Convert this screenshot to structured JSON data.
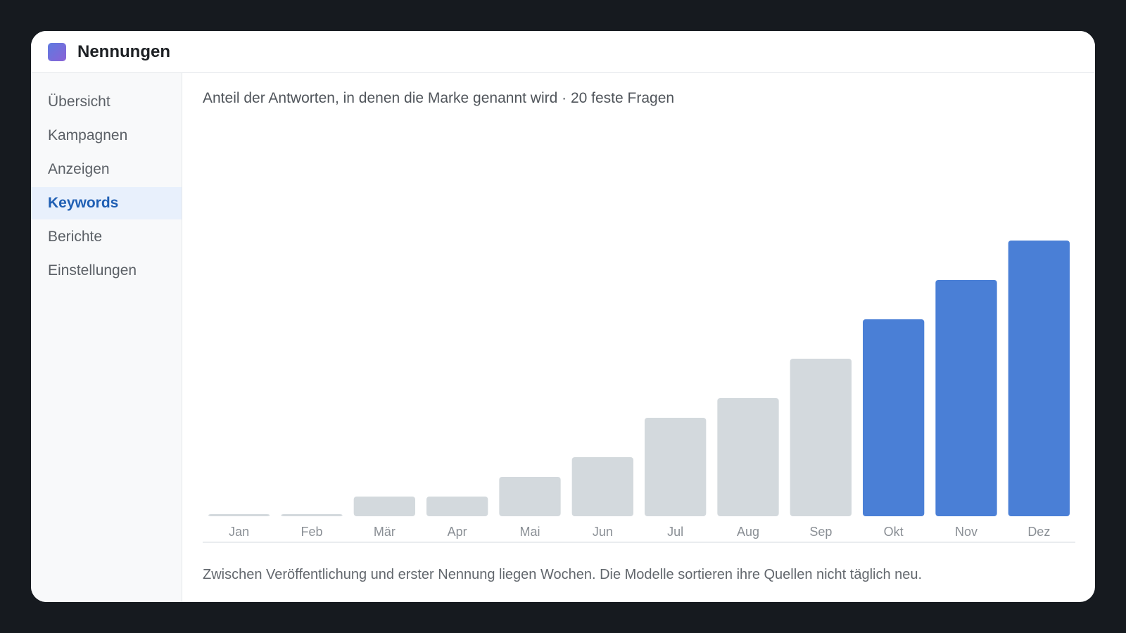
{
  "app": {
    "title": "Nennungen",
    "icon": "app-logo-icon",
    "icon_gradient": [
      "#5e7ae0",
      "#8a62d6"
    ]
  },
  "sidebar": {
    "items": [
      {
        "label": "Übersicht",
        "active": false
      },
      {
        "label": "Kampagnen",
        "active": false
      },
      {
        "label": "Anzeigen",
        "active": false
      },
      {
        "label": "Keywords",
        "active": true
      },
      {
        "label": "Berichte",
        "active": false
      },
      {
        "label": "Einstellungen",
        "active": false
      }
    ]
  },
  "main": {
    "chart_title": "Anteil der Antworten, in denen die Marke genannt wird · 20 feste Fragen",
    "note": "Zwischen Veröffentlichung und erster Nennung liegen Wochen. Die Modelle sortieren ihre Quellen nicht täglich neu."
  },
  "colors": {
    "accent": "#4a7fd6",
    "muted_bar": "#d3d9dd",
    "axis_line": "#e3e6ea",
    "tick_label": "#8a8f95"
  },
  "chart_data": {
    "type": "bar",
    "categories": [
      "Jan",
      "Feb",
      "Mär",
      "Apr",
      "Mai",
      "Jun",
      "Jul",
      "Aug",
      "Sep",
      "Okt",
      "Nov",
      "Dez"
    ],
    "values": [
      0.5,
      0.5,
      5,
      5,
      10,
      15,
      25,
      30,
      40,
      50,
      60,
      70
    ],
    "highlighted": [
      "Okt",
      "Nov",
      "Dez"
    ],
    "ylim": [
      0,
      100
    ],
    "grid": false,
    "title": "",
    "xlabel": "",
    "ylabel": ""
  }
}
